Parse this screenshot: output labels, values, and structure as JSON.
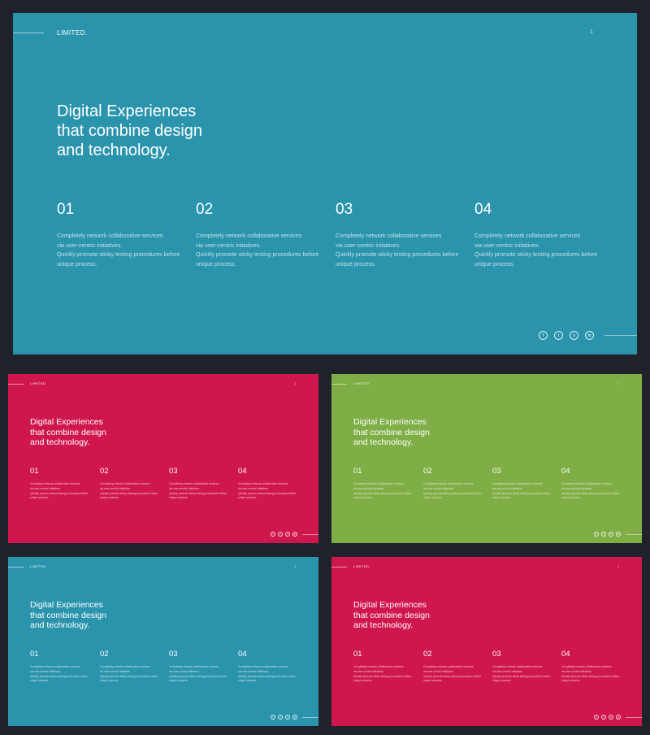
{
  "brand": "LIMITED.",
  "page_number": "1",
  "headline": [
    "Digital Experiences",
    "that combine design",
    "and technology."
  ],
  "columns": [
    {
      "number": "01",
      "lines": [
        "Completely network collaborative services",
        "via user-centric initiatives.",
        "Quickly promote sticky testing procedures before",
        "unique process."
      ]
    },
    {
      "number": "02",
      "lines": [
        "Completely network collaborative services",
        "via user-centric initiatives.",
        "Quickly promote sticky testing procedures before",
        "unique process."
      ]
    },
    {
      "number": "03",
      "lines": [
        "Completely network collaborative services",
        "via user-centric initiatives.",
        "Quickly promote sticky testing procedures before",
        "unique process."
      ]
    },
    {
      "number": "04",
      "lines": [
        "Completely network collaborative services",
        "via user-centric initiatives.",
        "Quickly promote sticky testing procedures before",
        "unique process."
      ]
    }
  ],
  "socials": [
    {
      "icon": "facebook-icon",
      "glyph": "f"
    },
    {
      "icon": "twitter-icon",
      "glyph": "t"
    },
    {
      "icon": "vimeo-icon",
      "glyph": "v"
    },
    {
      "icon": "linkedin-icon",
      "glyph": "in"
    }
  ],
  "slide_colors": [
    "#2b94ad",
    "#d0174d",
    "#7eae45",
    "#2b94ad",
    "#d0174d"
  ],
  "page_background": "#1f222b"
}
